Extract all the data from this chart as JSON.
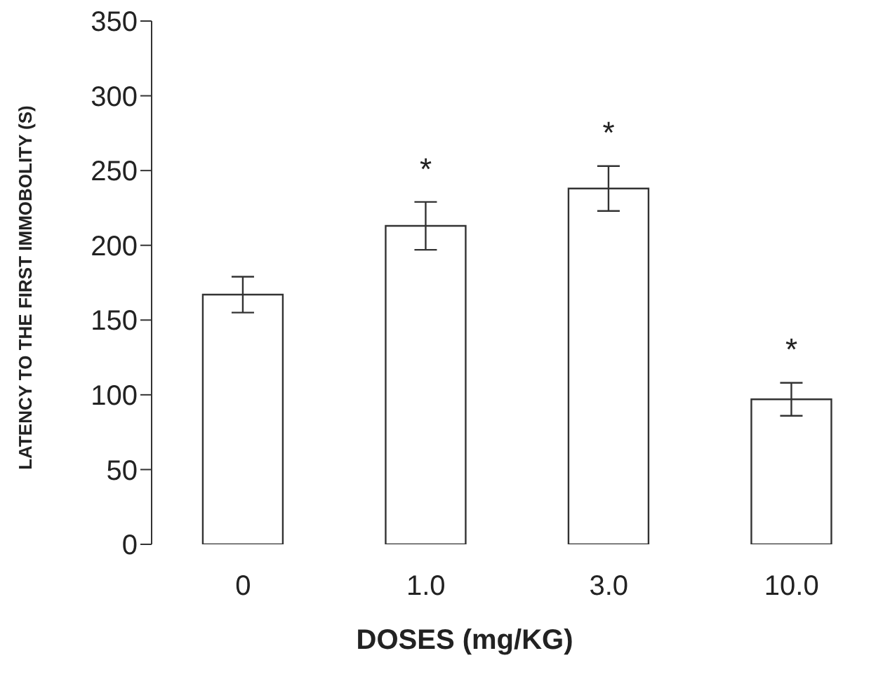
{
  "chart_data": {
    "type": "bar",
    "xlabel": "DOSES (mg/KG)",
    "ylabel": "LATENCY TO THE FIRST IMMOBOLITY (S)",
    "categories": [
      "0",
      "1.0",
      "3.0",
      "10.0"
    ],
    "values": [
      167,
      213,
      238,
      97
    ],
    "errors": [
      12,
      16,
      15,
      11
    ],
    "color": "#ffffff",
    "ylim": [
      0,
      350
    ],
    "yticks": [
      0,
      50,
      100,
      150,
      200,
      250,
      300,
      350
    ],
    "value_labels": [
      null,
      "*",
      "*",
      "*"
    ]
  }
}
